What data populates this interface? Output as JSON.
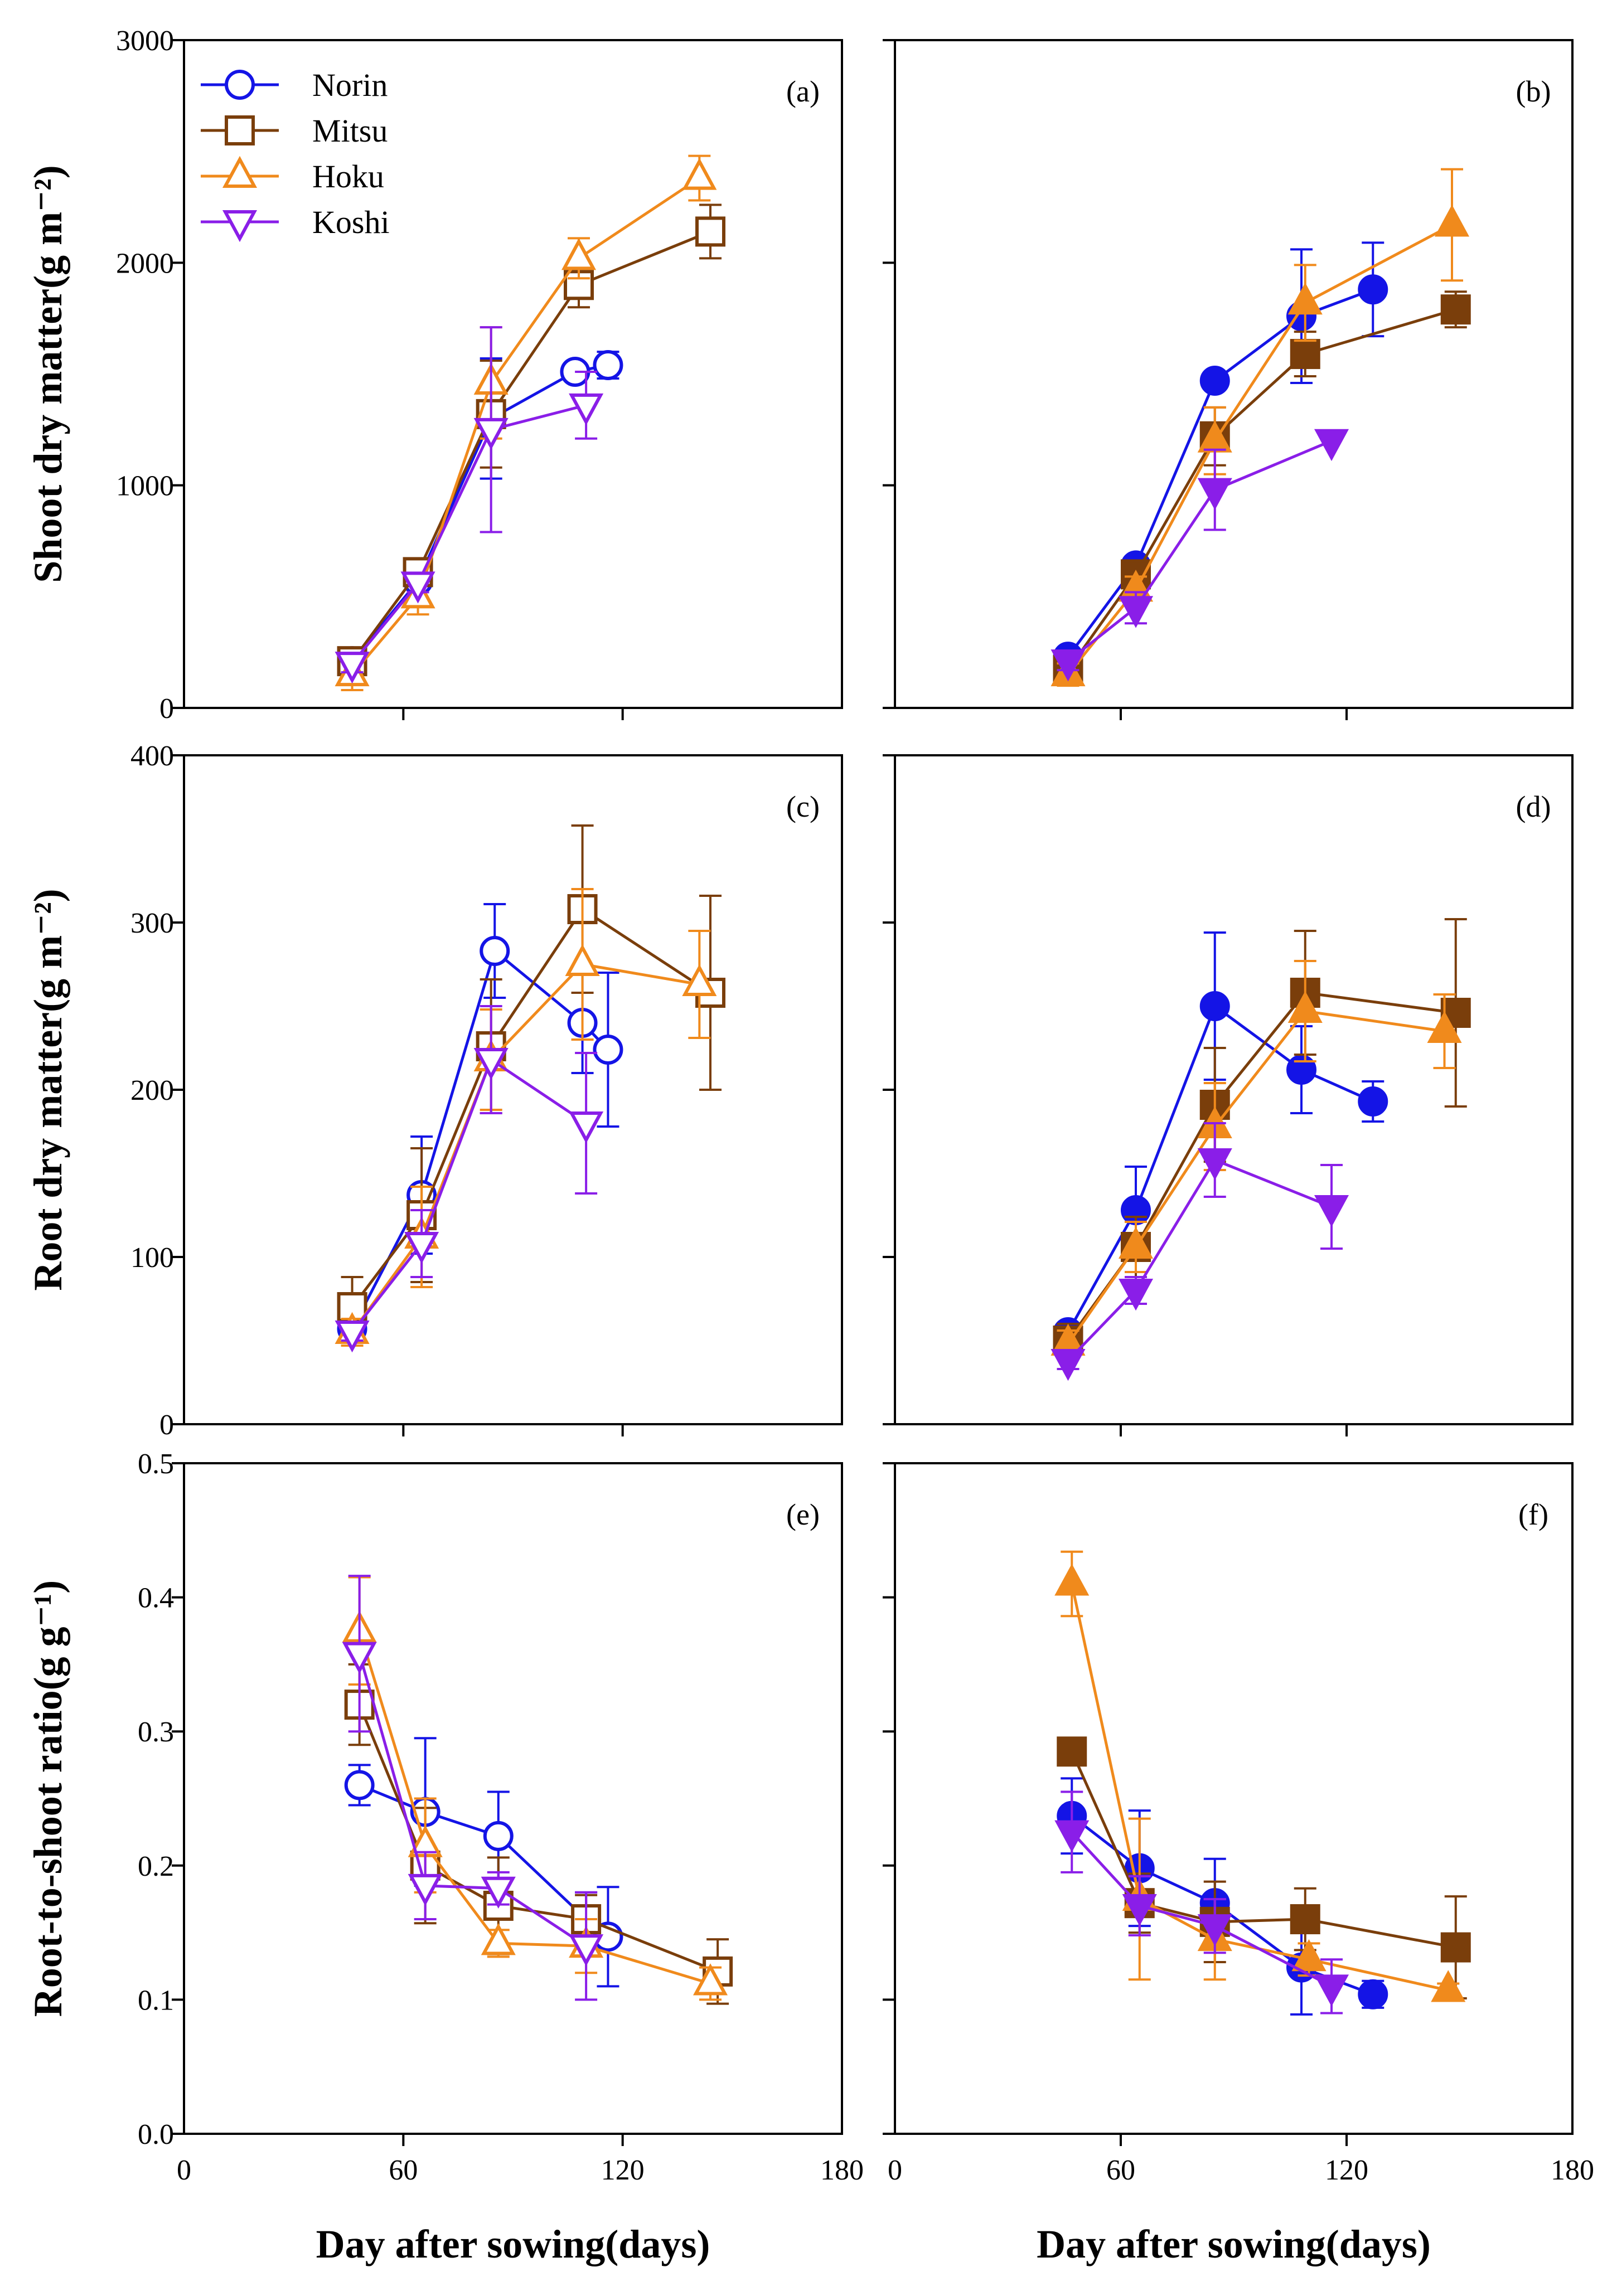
{
  "series_styles": [
    {
      "name": "Norin",
      "color": "#1414e6",
      "marker": "circle"
    },
    {
      "name": "Mitsu",
      "color": "#7a3e0b",
      "marker": "square"
    },
    {
      "name": "Hoku",
      "color": "#f08a1c",
      "marker": "triangle-up"
    },
    {
      "name": "Koshi",
      "color": "#8a1ee8",
      "marker": "triangle-down"
    }
  ],
  "xlabel": "Day after sowing(days)",
  "chart_data": [
    {
      "id": "a",
      "type": "line",
      "panel_label": "(a)",
      "filled": false,
      "legend": true,
      "ylabel": "Shoot dry matter(g m⁻²)",
      "xlim": [
        0,
        180
      ],
      "ylim": [
        0,
        3000
      ],
      "yticks": [
        0,
        1000,
        2000,
        3000
      ],
      "yticklabels": [
        "0",
        "1000",
        "2000",
        "3000"
      ],
      "xticks": [
        60,
        120
      ],
      "xticklabels": [],
      "series": [
        {
          "name": "Norin",
          "points": [
            [
              46,
              210,
              30
            ],
            [
              64,
              570,
              40
            ],
            [
              84,
              1300,
              270
            ],
            [
              107,
              1510,
              40
            ],
            [
              116,
              1540,
              60
            ]
          ]
        },
        {
          "name": "Mitsu",
          "points": [
            [
              46,
              210,
              40
            ],
            [
              64,
              610,
              50
            ],
            [
              84,
              1320,
              240
            ],
            [
              108,
              1900,
              100
            ],
            [
              144,
              2140,
              120
            ]
          ]
        },
        {
          "name": "Hoku",
          "points": [
            [
              46,
              150,
              70
            ],
            [
              64,
              500,
              80
            ],
            [
              84,
              1460,
              250
            ],
            [
              108,
              2020,
              90
            ],
            [
              141,
              2380,
              100
            ]
          ]
        },
        {
          "name": "Koshi",
          "points": [
            [
              46,
              200,
              40
            ],
            [
              64,
              560,
              40
            ],
            [
              84,
              1250,
              460
            ],
            [
              110,
              1360,
              150
            ]
          ]
        }
      ]
    },
    {
      "id": "b",
      "type": "line",
      "panel_label": "(b)",
      "filled": true,
      "legend": false,
      "ylabel": "",
      "xlim": [
        0,
        180
      ],
      "ylim": [
        0,
        3000
      ],
      "yticks": [
        0,
        1000,
        2000,
        3000
      ],
      "yticklabels": [],
      "xticks": [
        60,
        120
      ],
      "xticklabels": [],
      "series": [
        {
          "name": "Norin",
          "points": [
            [
              46,
              230,
              30
            ],
            [
              64,
              640,
              40
            ],
            [
              85,
              1470,
              30
            ],
            [
              108,
              1760,
              300
            ],
            [
              127,
              1880,
              210
            ]
          ]
        },
        {
          "name": "Mitsu",
          "points": [
            [
              46,
              170,
              40
            ],
            [
              64,
              600,
              50
            ],
            [
              85,
              1220,
              130
            ],
            [
              109,
              1590,
              100
            ],
            [
              149,
              1790,
              80
            ]
          ]
        },
        {
          "name": "Hoku",
          "points": [
            [
              46,
              150,
              50
            ],
            [
              64,
              530,
              60
            ],
            [
              85,
              1200,
              150
            ],
            [
              109,
              1820,
              170
            ],
            [
              148,
              2170,
              250
            ]
          ]
        },
        {
          "name": "Koshi",
          "points": [
            [
              46,
              210,
              40
            ],
            [
              64,
              450,
              70
            ],
            [
              85,
              980,
              180
            ],
            [
              116,
              1200,
              0
            ]
          ]
        }
      ]
    },
    {
      "id": "c",
      "type": "line",
      "panel_label": "(c)",
      "filled": false,
      "legend": false,
      "ylabel": "Root dry matter(g m⁻²)",
      "xlim": [
        0,
        180
      ],
      "ylim": [
        0,
        400
      ],
      "yticks": [
        0,
        100,
        200,
        300,
        400
      ],
      "yticklabels": [
        "0",
        "100",
        "200",
        "300",
        "400"
      ],
      "xticks": [
        60,
        120
      ],
      "xticklabels": [],
      "series": [
        {
          "name": "Norin",
          "points": [
            [
              46,
              57,
              5
            ],
            [
              65,
              137,
              35
            ],
            [
              85,
              283,
              28
            ],
            [
              109,
              240,
              30
            ],
            [
              116,
              224,
              46
            ]
          ]
        },
        {
          "name": "Mitsu",
          "points": [
            [
              46,
              70,
              18
            ],
            [
              65,
              125,
              40
            ],
            [
              84,
              226,
              40
            ],
            [
              109,
              308,
              50
            ],
            [
              144,
              258,
              58
            ]
          ]
        },
        {
          "name": "Hoku",
          "points": [
            [
              46,
              55,
              8
            ],
            [
              65,
              112,
              30
            ],
            [
              84,
              218,
              30
            ],
            [
              109,
              275,
              45
            ],
            [
              141,
              263,
              32
            ]
          ]
        },
        {
          "name": "Koshi",
          "points": [
            [
              46,
              55,
              5
            ],
            [
              65,
              108,
              20
            ],
            [
              84,
              218,
              32
            ],
            [
              110,
              180,
              42
            ]
          ]
        }
      ]
    },
    {
      "id": "d",
      "type": "line",
      "panel_label": "(d)",
      "filled": true,
      "legend": false,
      "ylabel": "",
      "xlim": [
        0,
        180
      ],
      "ylim": [
        0,
        400
      ],
      "yticks": [
        0,
        100,
        200,
        300,
        400
      ],
      "yticklabels": [],
      "xticks": [
        60,
        120
      ],
      "xticklabels": [],
      "series": [
        {
          "name": "Norin",
          "points": [
            [
              46,
              55,
              5
            ],
            [
              64,
              128,
              26
            ],
            [
              85,
              250,
              44
            ],
            [
              108,
              212,
              26
            ],
            [
              127,
              193,
              12
            ]
          ]
        },
        {
          "name": "Mitsu",
          "points": [
            [
              46,
              50,
              10
            ],
            [
              64,
              106,
              18
            ],
            [
              85,
              191,
              34
            ],
            [
              109,
              258,
              37
            ],
            [
              149,
              246,
              56
            ]
          ]
        },
        {
          "name": "Hoku",
          "points": [
            [
              46,
              48,
              8
            ],
            [
              64,
              106,
              15
            ],
            [
              85,
              178,
              26
            ],
            [
              109,
              247,
              30
            ],
            [
              146,
              235,
              22
            ]
          ]
        },
        {
          "name": "Koshi",
          "points": [
            [
              46,
              38,
              5
            ],
            [
              64,
              80,
              8
            ],
            [
              85,
              158,
              22
            ],
            [
              116,
              130,
              25
            ]
          ]
        }
      ]
    },
    {
      "id": "e",
      "type": "line",
      "panel_label": "(e)",
      "filled": false,
      "legend": false,
      "ylabel": "Root-to-shoot ratio(g g⁻¹)",
      "xlim": [
        0,
        180
      ],
      "ylim": [
        0,
        0.5
      ],
      "yticks": [
        0,
        0.1,
        0.2,
        0.3,
        0.4,
        0.5
      ],
      "yticklabels": [
        "0.0",
        "0.1",
        "0.2",
        "0.3",
        "0.4",
        "0.5"
      ],
      "xticks": [
        0,
        60,
        120,
        180
      ],
      "xticklabels": [
        "0",
        "60",
        "120",
        "180"
      ],
      "series": [
        {
          "name": "Norin",
          "points": [
            [
              48,
              0.26,
              0.015
            ],
            [
              66,
              0.24,
              0.055
            ],
            [
              86,
              0.222,
              0.033
            ],
            [
              110,
              0.16,
              0.02
            ],
            [
              116,
              0.147,
              0.037
            ]
          ]
        },
        {
          "name": "Mitsu",
          "points": [
            [
              48,
              0.32,
              0.03
            ],
            [
              66,
              0.2,
              0.043
            ],
            [
              86,
              0.17,
              0.036
            ],
            [
              110,
              0.16,
              0.018
            ],
            [
              146,
              0.121,
              0.024
            ]
          ]
        },
        {
          "name": "Hoku",
          "points": [
            [
              48,
              0.375,
              0.04
            ],
            [
              66,
              0.215,
              0.035
            ],
            [
              86,
              0.142,
              0.01
            ],
            [
              110,
              0.14,
              0.02
            ],
            [
              144,
              0.112,
              0.012
            ]
          ]
        },
        {
          "name": "Koshi",
          "points": [
            [
              48,
              0.358,
              0.058
            ],
            [
              66,
              0.185,
              0.025
            ],
            [
              86,
              0.183,
              0.012
            ],
            [
              110,
              0.14,
              0.04
            ]
          ]
        }
      ]
    },
    {
      "id": "f",
      "type": "line",
      "panel_label": "(f)",
      "filled": true,
      "legend": false,
      "ylabel": "",
      "xlim": [
        0,
        180
      ],
      "ylim": [
        0,
        0.5
      ],
      "yticks": [
        0,
        0.1,
        0.2,
        0.3,
        0.4,
        0.5
      ],
      "yticklabels": [],
      "xticks": [
        0,
        60,
        120,
        180
      ],
      "xticklabels": [
        "0",
        "60",
        "120",
        "180"
      ],
      "series": [
        {
          "name": "Norin",
          "points": [
            [
              47,
              0.237,
              0.028
            ],
            [
              65,
              0.198,
              0.043
            ],
            [
              85,
              0.172,
              0.033
            ],
            [
              108,
              0.124,
              0.035
            ],
            [
              127,
              0.104,
              0.01
            ]
          ]
        },
        {
          "name": "Mitsu",
          "points": [
            [
              47,
              0.285,
              0.01
            ],
            [
              65,
              0.172,
              0.022
            ],
            [
              85,
              0.158,
              0.03
            ],
            [
              109,
              0.16,
              0.023
            ],
            [
              149,
              0.139,
              0.038
            ]
          ]
        },
        {
          "name": "Hoku",
          "points": [
            [
              47,
              0.41,
              0.024
            ],
            [
              65,
              0.175,
              0.06
            ],
            [
              85,
              0.145,
              0.03
            ],
            [
              110,
              0.13,
              0.012
            ],
            [
              147,
              0.107,
              0.005
            ]
          ]
        },
        {
          "name": "Koshi",
          "points": [
            [
              47,
              0.225,
              0.03
            ],
            [
              65,
              0.17,
              0.022
            ],
            [
              85,
              0.155,
              0.02
            ],
            [
              116,
              0.11,
              0.02
            ]
          ]
        }
      ]
    }
  ]
}
